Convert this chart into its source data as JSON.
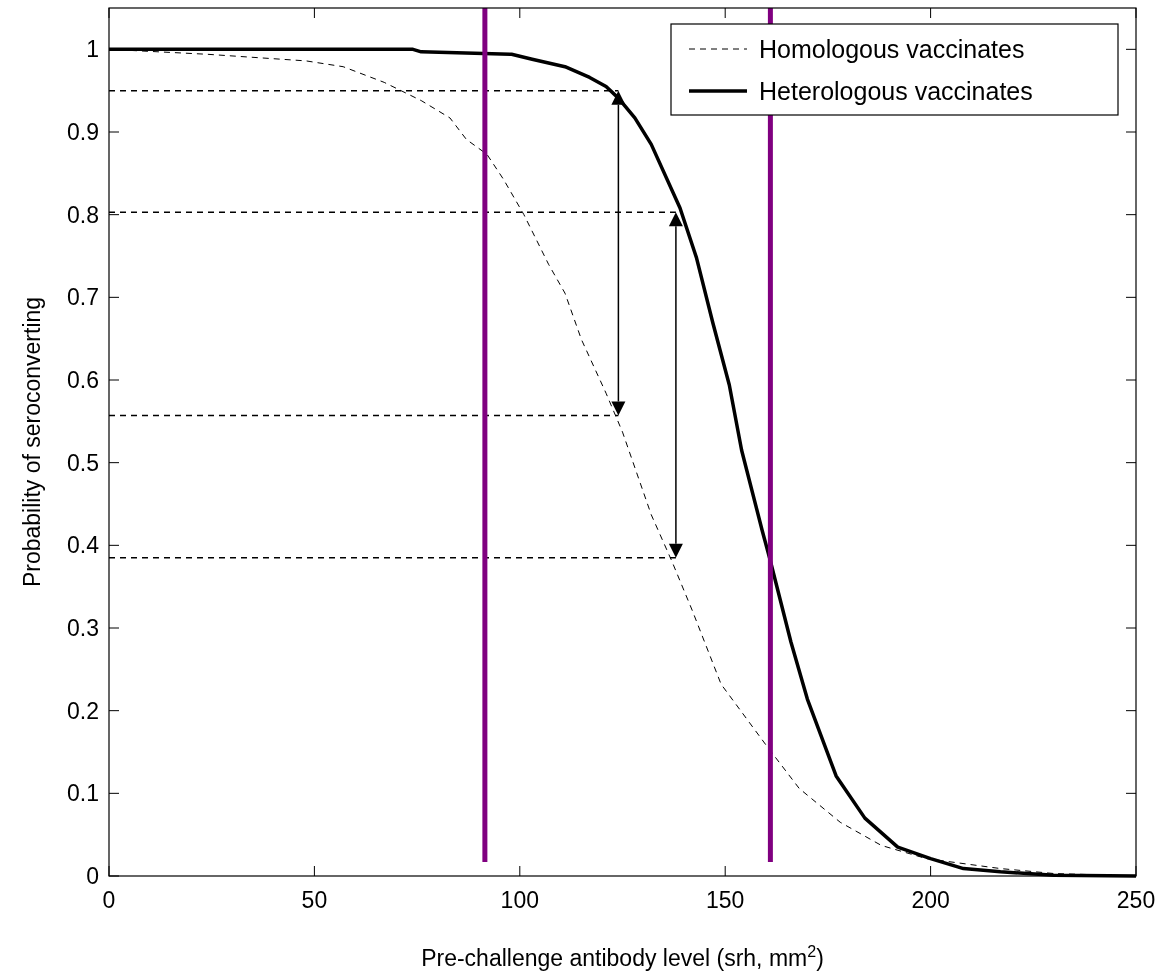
{
  "chart_data": {
    "type": "line",
    "xlabel": "Pre-challenge antibody level (srh, mm$^{2}$)",
    "ylabel": "Probability of seroconverting",
    "xlim": [
      0,
      250
    ],
    "xticks": [
      0,
      50,
      100,
      150,
      200,
      250
    ],
    "ylim": [
      0,
      1.05
    ],
    "yticks": [
      0,
      0.1,
      0.2,
      0.3,
      0.4,
      0.5,
      0.6,
      0.7,
      0.8,
      0.9,
      1
    ],
    "grid": false,
    "legend": "top right",
    "series": [
      {
        "name": "Homologous vaccinates",
        "color": "#000000",
        "line_style": "dashed",
        "x": [
          0,
          24,
          48,
          57,
          67,
          76,
          83,
          87,
          92,
          96,
          101,
          107,
          111,
          115,
          121,
          125,
          132,
          137,
          142,
          149,
          160,
          168,
          178,
          188,
          199,
          217,
          230,
          250
        ],
        "values": [
          1,
          0.994,
          0.986,
          0.979,
          0.96,
          0.938,
          0.917,
          0.891,
          0.873,
          0.843,
          0.8,
          0.74,
          0.705,
          0.649,
          0.584,
          0.537,
          0.437,
          0.381,
          0.321,
          0.232,
          0.158,
          0.106,
          0.065,
          0.037,
          0.021,
          0.009,
          0.003,
          0
        ]
      },
      {
        "name": "Heterologous vaccinates",
        "color": "#000000",
        "line_style": "solid",
        "x": [
          0,
          74,
          76,
          98,
          103,
          111,
          117,
          121,
          124,
          128,
          132,
          139,
          143,
          147,
          151,
          154,
          159,
          161,
          166,
          170,
          177,
          184,
          192,
          200,
          208,
          217,
          230,
          250
        ],
        "values": [
          1,
          1,
          0.997,
          0.994,
          0.988,
          0.979,
          0.966,
          0.955,
          0.941,
          0.917,
          0.885,
          0.808,
          0.748,
          0.669,
          0.594,
          0.515,
          0.418,
          0.381,
          0.283,
          0.214,
          0.121,
          0.07,
          0.035,
          0.021,
          0.009,
          0.005,
          0.001,
          0
        ]
      },
      {
        "color": "#000000",
        "line_style": "dashed",
        "x": [
          0,
          124
        ],
        "values": [
          0.95,
          0.95
        ]
      },
      {
        "color": "#000000",
        "line_style": "dashed",
        "x": [
          0,
          138
        ],
        "values": [
          0.803,
          0.803
        ]
      },
      {
        "color": "#000000",
        "line_style": "dashed",
        "x": [
          0,
          124
        ],
        "values": [
          0.557,
          0.557
        ]
      },
      {
        "color": "#000000",
        "line_style": "dashed",
        "x": [
          0,
          138
        ],
        "values": [
          0.385,
          0.385
        ]
      }
    ],
    "ref_lines": [
      {
        "axis": "x",
        "value": 91.5,
        "color": "#800080"
      },
      {
        "axis": "x",
        "value": 161,
        "color": "#800080"
      }
    ]
  }
}
